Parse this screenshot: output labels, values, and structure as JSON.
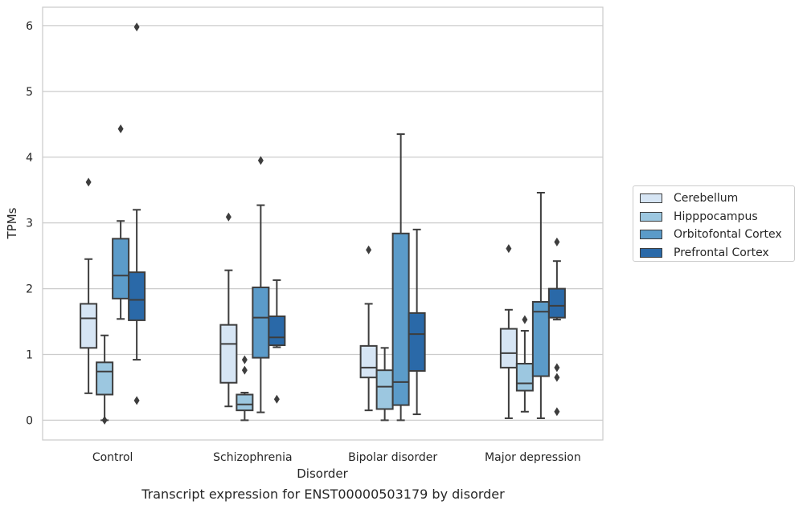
{
  "caption": "Transcript expression for ENST00000503179 by disorder",
  "chart_data": {
    "type": "box",
    "xlabel": "Disorder",
    "ylabel": "TPMs",
    "ylim": [
      -0.3,
      6.28
    ],
    "yticks": [
      0,
      1,
      2,
      3,
      4,
      5,
      6
    ],
    "grid": true,
    "legend_position": "right",
    "categories": [
      "Control",
      "Schizophrenia",
      "Bipolar disorder",
      "Major depression"
    ],
    "series": [
      {
        "name": "Cerebellum",
        "color": "#d6e5f4",
        "boxes": [
          {
            "whislo": 0.41,
            "q1": 1.1,
            "med": 1.55,
            "q3": 1.77,
            "whishi": 2.45,
            "fliers": [
              3.62
            ]
          },
          {
            "whislo": 0.21,
            "q1": 0.57,
            "med": 1.16,
            "q3": 1.45,
            "whishi": 2.28,
            "fliers": [
              3.09
            ]
          },
          {
            "whislo": 0.15,
            "q1": 0.65,
            "med": 0.8,
            "q3": 1.13,
            "whishi": 1.77,
            "fliers": [
              2.59
            ]
          },
          {
            "whislo": 0.03,
            "q1": 0.8,
            "med": 1.02,
            "q3": 1.39,
            "whishi": 1.68,
            "fliers": [
              2.61
            ]
          }
        ]
      },
      {
        "name": "Hipppocampus",
        "color": "#9cc7e0",
        "boxes": [
          {
            "whislo": 0.0,
            "q1": 0.39,
            "med": 0.74,
            "q3": 0.88,
            "whishi": 1.29,
            "fliers": [
              0.0
            ]
          },
          {
            "whislo": 0.0,
            "q1": 0.15,
            "med": 0.24,
            "q3": 0.39,
            "whishi": 0.42,
            "fliers": [
              0.92,
              0.76
            ]
          },
          {
            "whislo": 0.0,
            "q1": 0.17,
            "med": 0.51,
            "q3": 0.76,
            "whishi": 1.1,
            "fliers": []
          },
          {
            "whislo": 0.13,
            "q1": 0.45,
            "med": 0.56,
            "q3": 0.86,
            "whishi": 1.36,
            "fliers": [
              1.53
            ]
          }
        ]
      },
      {
        "name": "Orbitofontal Cortex",
        "color": "#5b9bc9",
        "boxes": [
          {
            "whislo": 1.54,
            "q1": 1.85,
            "med": 2.2,
            "q3": 2.76,
            "whishi": 3.03,
            "fliers": [
              4.43
            ]
          },
          {
            "whislo": 0.12,
            "q1": 0.95,
            "med": 1.56,
            "q3": 2.02,
            "whishi": 3.27,
            "fliers": [
              3.95
            ]
          },
          {
            "whislo": 0.0,
            "q1": 0.23,
            "med": 0.58,
            "q3": 2.84,
            "whishi": 4.35,
            "fliers": []
          },
          {
            "whislo": 0.03,
            "q1": 0.67,
            "med": 1.65,
            "q3": 1.8,
            "whishi": 3.46,
            "fliers": []
          }
        ]
      },
      {
        "name": "Prefrontal Cortex",
        "color": "#2a69a8",
        "boxes": [
          {
            "whislo": 0.92,
            "q1": 1.52,
            "med": 1.83,
            "q3": 2.25,
            "whishi": 3.2,
            "fliers": [
              5.98,
              0.3
            ]
          },
          {
            "whislo": 1.11,
            "q1": 1.14,
            "med": 1.26,
            "q3": 1.58,
            "whishi": 2.13,
            "fliers": [
              0.32
            ]
          },
          {
            "whislo": 0.09,
            "q1": 0.75,
            "med": 1.31,
            "q3": 1.63,
            "whishi": 2.9,
            "fliers": []
          },
          {
            "whislo": 1.53,
            "q1": 1.56,
            "med": 1.74,
            "q3": 2.0,
            "whishi": 2.42,
            "fliers": [
              2.71,
              0.8,
              0.65,
              0.13
            ]
          }
        ]
      }
    ]
  }
}
